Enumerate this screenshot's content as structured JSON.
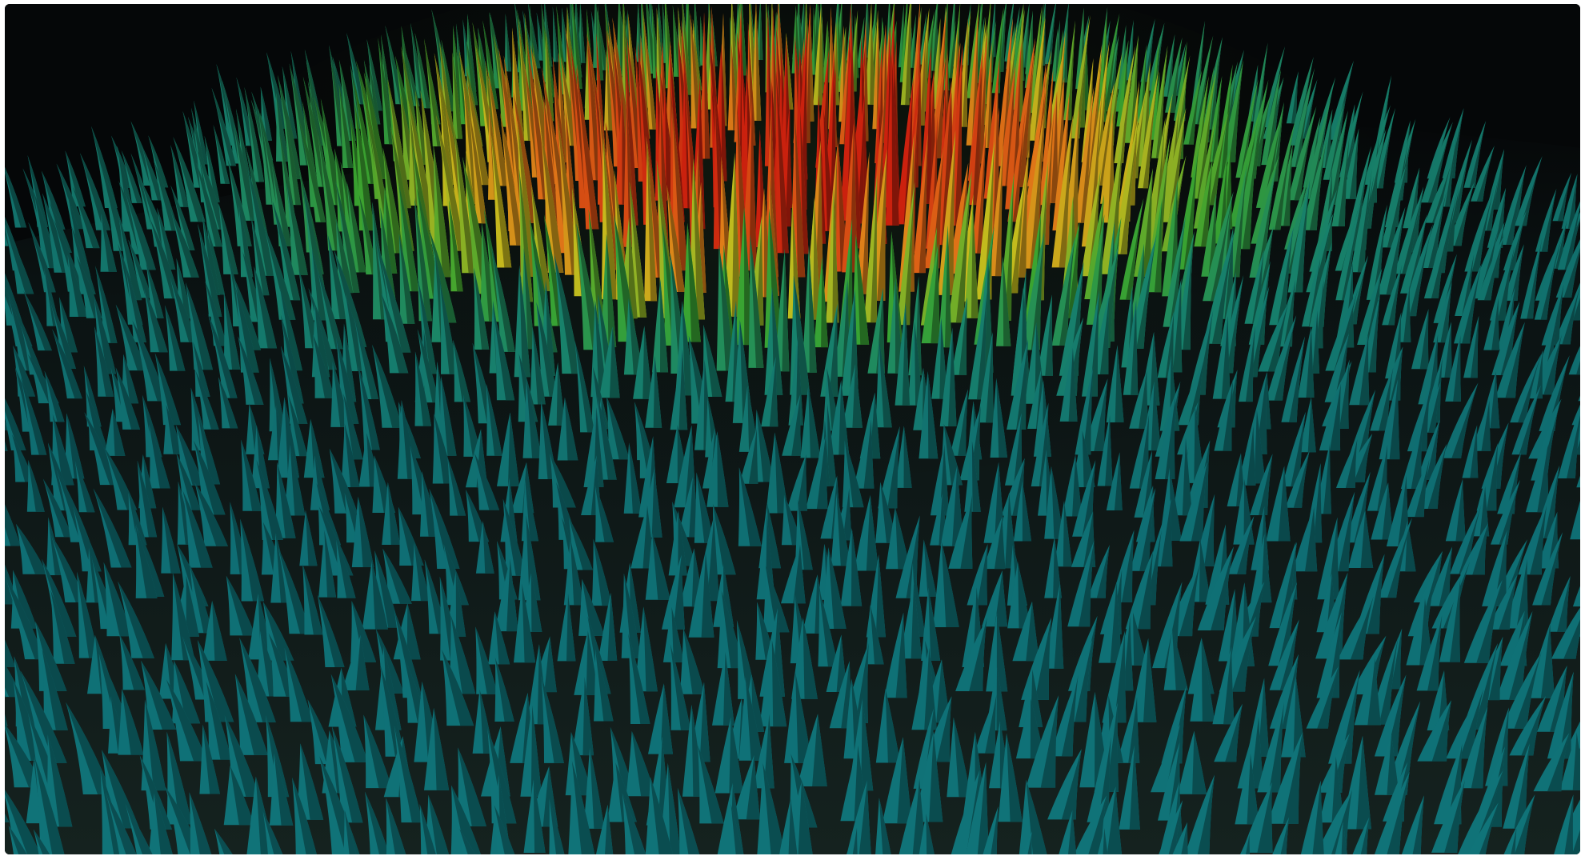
{
  "image": {
    "subject": "",
    "colors": {
      "background": "#050708",
      "floor": "#0d1a1a",
      "teal": "#0f7f80",
      "blue": "#1d6fa6",
      "green": "#3fae37",
      "yellow": "#d8c61c",
      "orange": "#e8781a",
      "red": "#d5200f"
    }
  }
}
